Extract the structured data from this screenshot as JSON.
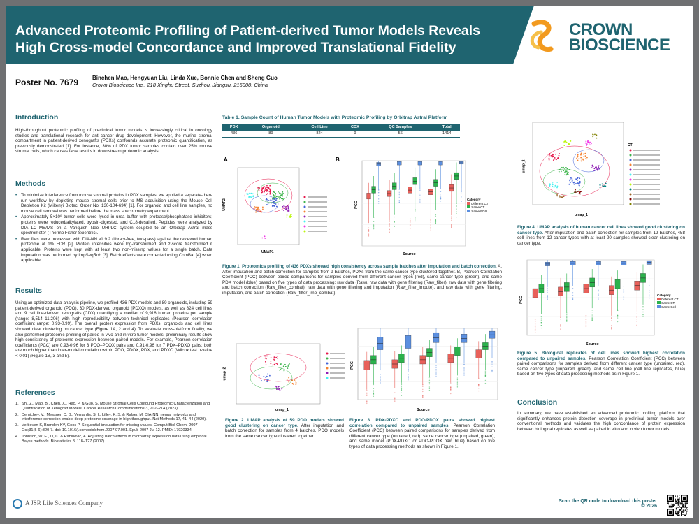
{
  "header": {
    "title_line1": "Advanced Proteomic Profiling of Patient-derived Tumor Models Reveals",
    "title_line2": "High Cross-model Concordance and Improved Translational Fidelity",
    "logo_line1": "CROWN",
    "logo_line2": "BIOSCIENCE"
  },
  "meta": {
    "poster_no": "Poster No. 7679",
    "authors": "Binchen Mao, Hengyuan Liu, Linda Xue, Bonnie Chen and Sheng Guo",
    "affiliation": "Crown Bioscience Inc., 218 Xinghu Street, Suzhou, Jiangsu, 215000, China"
  },
  "introduction": {
    "heading": "Introduction",
    "text": "High-throughput proteomic profiling of preclinical tumor models is increasingly critical in oncology studies and translational research for anti-cancer drug development. However, the murine stromal compartment in patient-derived xenografts (PDXs) confounds accurate proteomic quantification, as previously demonstrated [1]. For instance, 30% of PDX tumor samples contain over 25% mouse stromal cells, which causes false results in downstream proteomic analysis."
  },
  "methods": {
    "heading": "Methods",
    "items": [
      "To minimize interference from mouse stromal proteins in PDX samples, we applied a separate-then-run workflow by depleting mouse stromal cells prior to MS acquisition using the Mouse Cell Depletion Kit (Miltenyi Biotec; Order No. 130-104-694) [1]. For organoid and cell line samples, no mouse cell removal was performed before the mass spectrometry experiment.",
      "Approximately 5×10⁶ tumor cells were lysed in urea buffer with protease/phosphatase inhibitors; proteins were reduced/alkylated, trypsin-digested, and C18-desalted. Peptides were analyzed by DIA LC–MS/MS on a Vanquish Neo UHPLC system coupled to an Orbitrap Astral mass spectrometer (Thermo Fisher Scientific).",
      "Raw files were processed with DIA-NN v1.9.2 (library-free, two-pass) against the reviewed human proteome at 1% FDR [2]. Protein intensities were log-transformed and z-score transformed if applicable. Proteins were kept with at least two non-missing values for a single batch. Data imputation was performed by impSeqRob [3]. Batch effects were corrected using ComBat [4] when applicable."
    ]
  },
  "results": {
    "heading": "Results",
    "text": "Using an optimized data-analysis pipeline, we profiled 436 PDX models and 89 organoids, including 59 patient-derived organoid (PDO), 30 PDX-derived organoid (PDXO) models, as well as 824 cell lines and 9 cell line-derived xenografts (CDX) quantifying a median of 9,916 human proteins per sample (range: 8,514–11,206) with high reproducibility between technical replicates (Pearson correlation coefficient range: 0.93-0.99). The overall protein expression from PDXs, organoids and cell lines showed clear clustering on cancer type (Figure 1A, 2 and 4). To evaluate cross-platform fidelity, we also performed proteomic profiling of paired in vivo and in vitro tumor models; preliminary results show high consistency of proteome expression between paired models. For example, Pearson correlation coefficients (PCC) are 0.93-0.96 for 3 PDO–PDOX pairs and 0.91-0.96 for 7 PDX–PDXO pairs; both are much higher than inter-model correlation within PDO, PDOX, PDX, and PDXO (Wilcox test p-value < 0.01) (Figure 1B, 3 and 5)."
  },
  "references": {
    "heading": "References",
    "items": [
      {
        "n": "1.",
        "text": "Shi, Z., Mao, B., Chen, X., Hao, P. & Guo, S. Mouse Stromal Cells Confound Proteomic Characterization and Quantification of Xenograft Models. Cancer Research Communications 3, 202–214 (2023)."
      },
      {
        "n": "2.",
        "text": "Demichev, V., Messner, C. B., Vernardis, S. I., Lilley, K. S. & Ralser, M. DIA-NN: neural networks and interference correction enable deep proteome coverage in high throughput. Nat Methods 17, 41–44 (2020)."
      },
      {
        "n": "3.",
        "text": "Verboven S, Branden KV, Goos P. Sequential imputation for missing values. Comput Biol Chem. 2007 Oct;31(5-6):320-7. doi: 10.1016/j.compbiolchem.2007.07.001. Epub 2007 Jul 12. PMID: 17920334."
      },
      {
        "n": "4.",
        "text": "Johnson, W. E., Li, C. & Rabinovic, A. Adjusting batch effects in microarray expression data using empirical Bayes methods. Biostatistics 8, 118–127 (2007)."
      }
    ]
  },
  "table1": {
    "title": "Table 1. Sample Count of Human Tumor Models with Proteomic Profiling by Orbitrap Astral Platform",
    "headers": [
      "PDX",
      "Organoid",
      "Cell Line",
      "CDX",
      "QC Samples",
      "Total"
    ],
    "row": [
      "436",
      "89",
      "824",
      "9",
      "56",
      "1414"
    ]
  },
  "figure1": {
    "label_a": "A",
    "label_b": "B",
    "umap_xlabel": "UMAP1",
    "umap_ylabel": "UMAP2",
    "box_xlabel": "Source",
    "box_ylabel": "PCC",
    "legend_title": "Category",
    "legend_items": [
      "Different CT",
      "Same CT",
      "Same PDX"
    ],
    "box_categories": [
      "Raw",
      "Raw_filter",
      "Raw_filter_combat",
      "Raw_filter_imp",
      "Raw_filter_imp_combat"
    ],
    "caption_head": "Figure 1. Proteomics profiling of 436 PDXs showed high consistency across sample batches after imputation and batch correction.",
    "caption_body": " A, After imputation and batch correction for samples from 9 batches, PDXs from the same cancer type clustered together. B, Pearson Correlation Coefficient (PCC) between paired comparisons for samples derived from different cancer types (red), same cancer type (green), and same PDX model (blue) based on five types of data processing: raw data (Raw), raw data with gene filtering (Raw_filter), raw data with gene filtering and batch correction (Raw_filter_combat), raw data with gene filtering and imputation (Raw_filter_impute), and raw data with gene filtering, imputation, and batch correction (Raw_filter_imp_combat)."
  },
  "figure2": {
    "xlabel": "umap_1",
    "ylabel": "umap_2",
    "caption_head": "Figure 2. UMAP analysis of 59 PDO models showed good clustering on cancer type.",
    "caption_body": " After imputation and batch correction for samples from 4 batches, PDO models from the same cancer type clustered together."
  },
  "figure3": {
    "xlabel": "Source",
    "ylabel": "PCC",
    "categories": [
      "Raw",
      "Raw_filter",
      "Raw_filter_combat",
      "Raw_filter_imp",
      "Raw_filter_imp_combat"
    ],
    "caption_head": "Figure 3. PDX-PDXO and PDO-PDOX pairs showed highest correlation compared to unpaired samples.",
    "caption_body": " Pearson Correlation Coefficient (PCC) between paired comparisons for samples derived from different cancer type (unpaired, red), same cancer type (unpaired, green), and same model (PDX-PDXO or PDO-PDOX pair, blue) based on five types of data processing methods as shown in Figure 1."
  },
  "figure4": {
    "xlabel": "umap_1",
    "ylabel": "umap_2",
    "legend_title": "CT",
    "caption_head": "Figure 4. UMAP analysis of human cancer cell lines showed good clustering on cancer type.",
    "caption_body": " After imputation and batch correction for samples from 12 batches, 458 cell lines from 12 cancer types with at least 20 samples showed clear clustering on cancer type."
  },
  "figure5": {
    "xlabel": "Source",
    "ylabel": "PCC",
    "legend_title": "Category",
    "legend_items": [
      "Different CT",
      "Same CT",
      "Same Cell"
    ],
    "caption_head": "Figure 5. Biological replicates of cell lines showed highest correlation compared to unpaired samples.",
    "caption_body": " Pearson Correlation Coefficient (PCC) between paired comparisons for samples derived from different cancer type (unpaired, red), same cancer type (unpaired, green), and same cell line (cell line replicates, blue) based on five types of data processing methods as in Figure 1."
  },
  "conclusion": {
    "heading": "Conclusion",
    "text": "In summary, we have established an advanced proteomic profiling platform that significantly enhances protein detection coverage in preclinical tumor models over conventional methods and validates the high concordance of protein expression between biological replicates as well as paired in vitro and in vivo tumor models."
  },
  "footer": {
    "company": "A JSR Life Sciences Company",
    "qr_line1": "Scan the QR code to download this poster",
    "qr_line2": "© 2026"
  },
  "colors": {
    "brand": "#1f6470",
    "red": "#e8605a",
    "green": "#2bb24c",
    "blue": "#5b8fe0",
    "accent_orange": "#f29a1f"
  },
  "icons": {
    "logo": "crown-logo-icon",
    "qr": "qr-code-icon",
    "jsr": "jsr-logo-icon"
  }
}
